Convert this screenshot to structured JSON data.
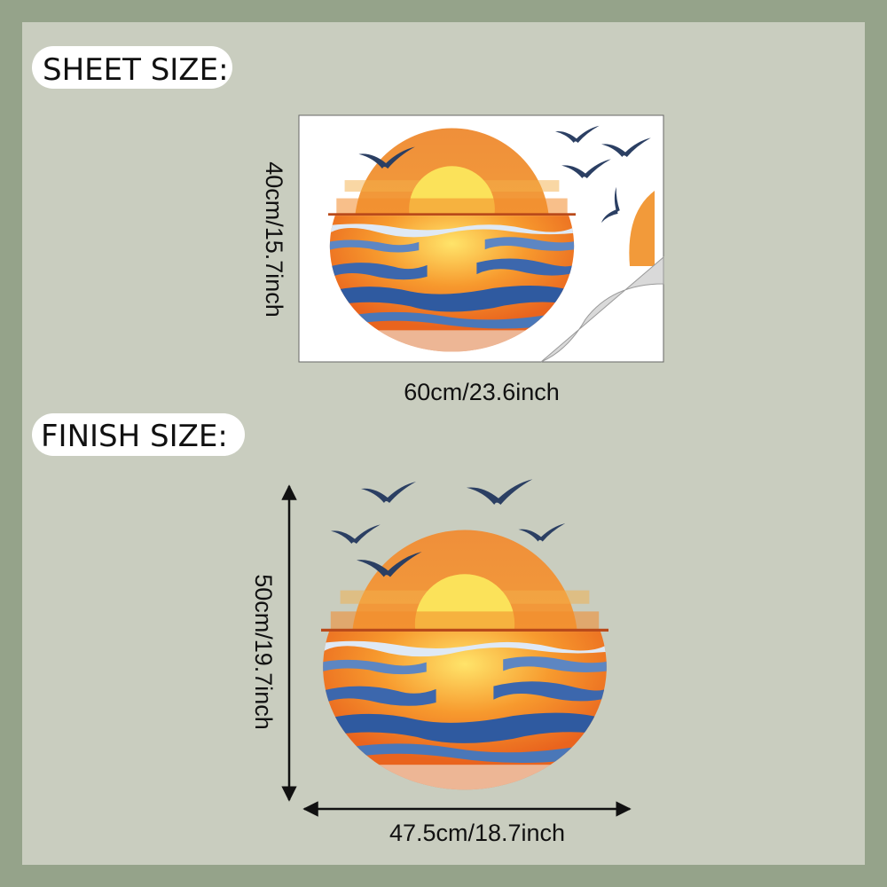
{
  "sheet": {
    "title": "SHEET SIZE:",
    "height": "40cm/15.7inch",
    "width": "60cm/23.6inch"
  },
  "finish": {
    "title": "FINISH SIZE:",
    "height": "50cm/19.7inch",
    "width": "47.5cm/18.7inch"
  }
}
